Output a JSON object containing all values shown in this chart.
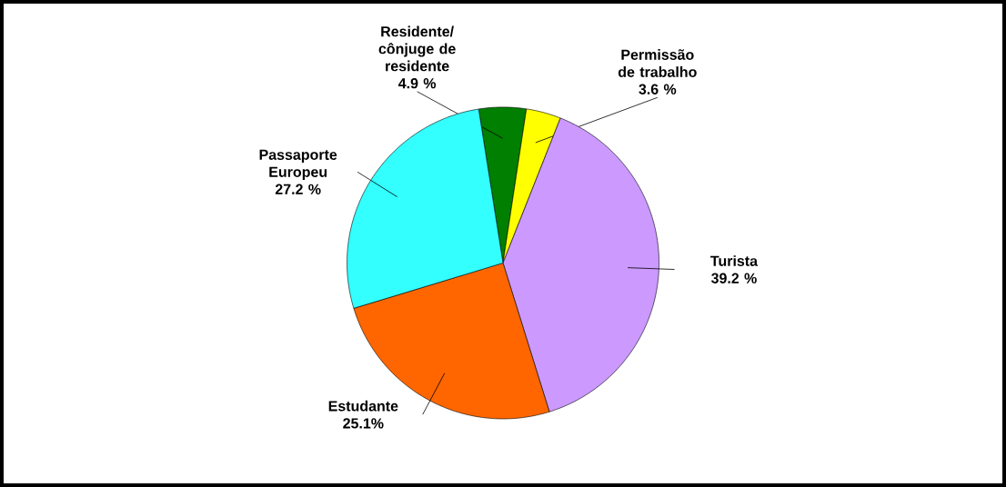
{
  "chart_data": {
    "type": "pie",
    "categories": [
      "Residente/ cônjuge de residente",
      "Permissão de trabalho",
      "Turista",
      "Estudante",
      "Passaporte Europeu"
    ],
    "values": [
      4.9,
      3.6,
      39.2,
      25.1,
      27.2
    ],
    "value_labels": [
      "4.9 %",
      "3.6 %",
      "39.2 %",
      "25.1%",
      "27.2 %"
    ],
    "colors": [
      "#007f00",
      "#ffff00",
      "#cc99ff",
      "#ff6600",
      "#33ffff"
    ]
  }
}
